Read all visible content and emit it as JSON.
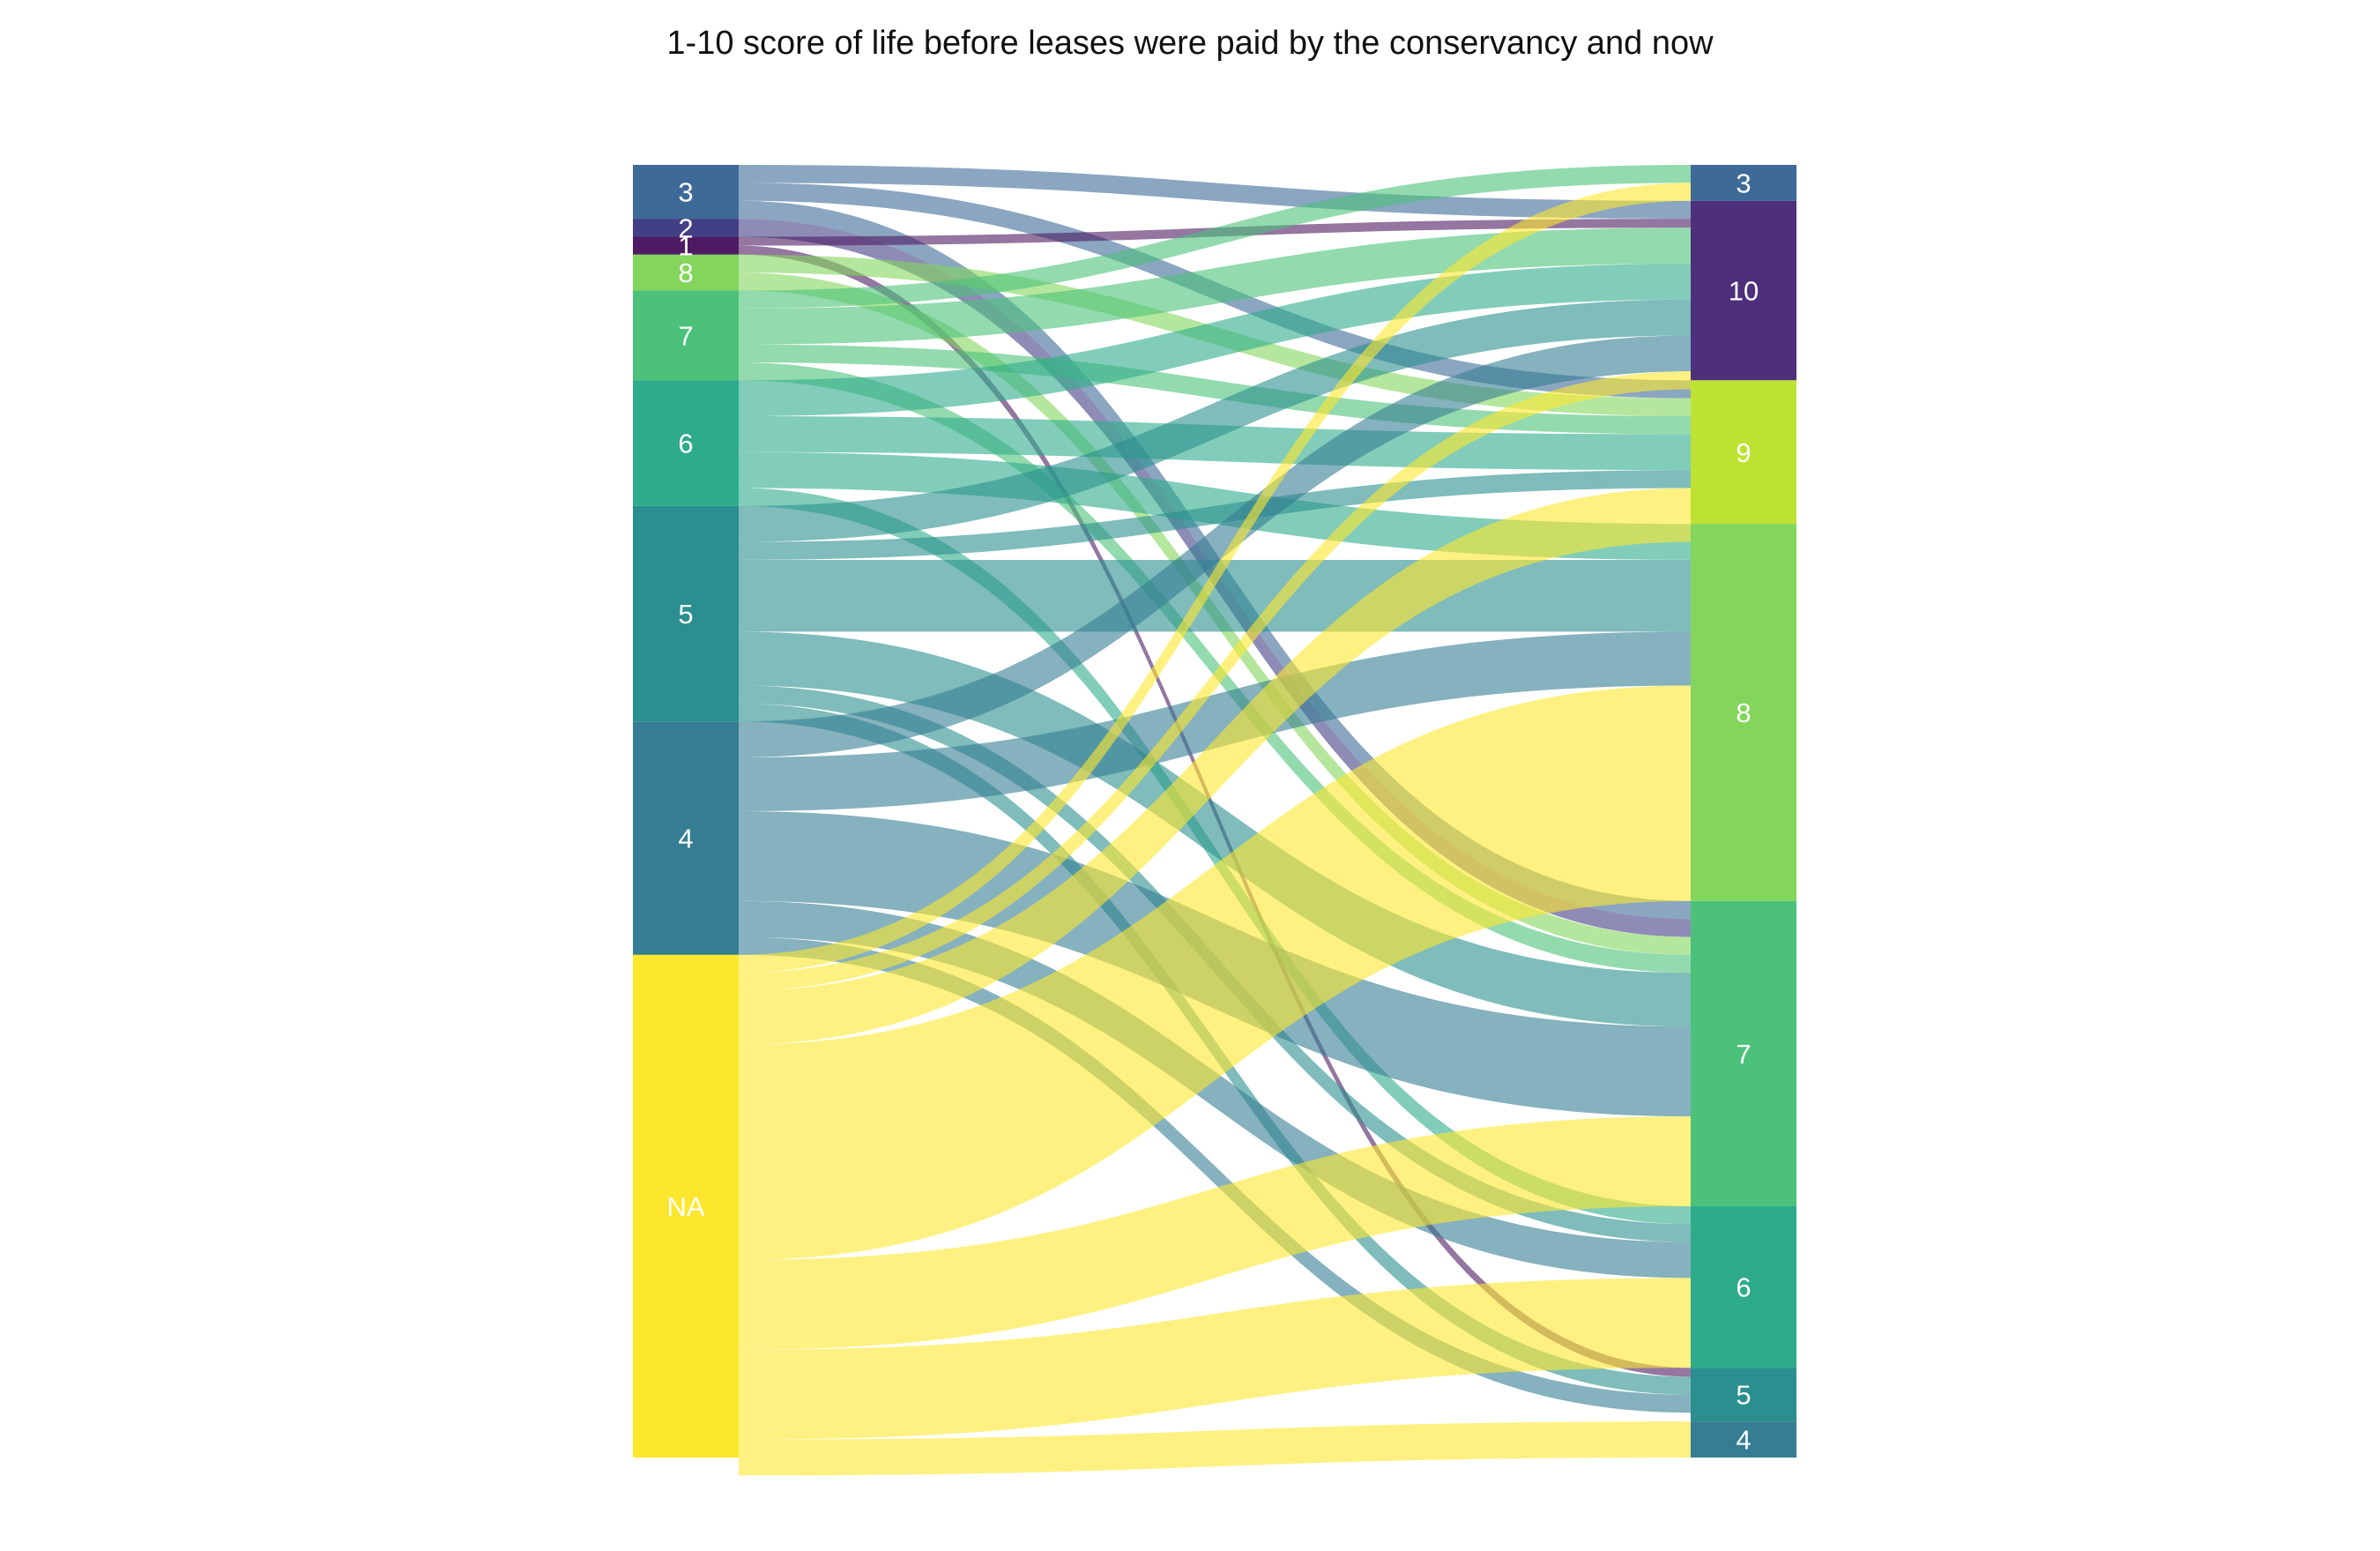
{
  "title": "1-10 score of life before leases were paid by the conservancy and now",
  "chart_data": {
    "type": "sankey",
    "title": "1-10 score of life before leases were paid by the conservancy and now",
    "left_nodes": [
      {
        "label": "3",
        "value": 3,
        "color": "#3e6a97"
      },
      {
        "label": "2",
        "value": 1,
        "color": "#433f85"
      },
      {
        "label": "1",
        "value": 1,
        "color": "#4d1a63"
      },
      {
        "label": "8",
        "value": 2,
        "color": "#83d55c"
      },
      {
        "label": "7",
        "value": 5,
        "color": "#4bc17a"
      },
      {
        "label": "6",
        "value": 7,
        "color": "#2eab8b"
      },
      {
        "label": "5",
        "value": 12,
        "color": "#2a8f8e"
      },
      {
        "label": "4",
        "value": 13,
        "color": "#357d93"
      },
      {
        "label": "NA",
        "value": 28,
        "color": "#fde72d"
      }
    ],
    "right_nodes": [
      {
        "label": "3",
        "value": 2,
        "color": "#3e6a97"
      },
      {
        "label": "10",
        "value": 10,
        "color": "#4e2f7c"
      },
      {
        "label": "9",
        "value": 8,
        "color": "#bde231"
      },
      {
        "label": "8",
        "value": 21,
        "color": "#83d55c"
      },
      {
        "label": "7",
        "value": 17,
        "color": "#4bc17a"
      },
      {
        "label": "6",
        "value": 9,
        "color": "#2eab8b"
      },
      {
        "label": "5",
        "value": 3,
        "color": "#2a8f8e"
      },
      {
        "label": "4",
        "value": 2,
        "color": "#357d93"
      }
    ],
    "links": [
      {
        "source": "3",
        "target": "10",
        "value": 1
      },
      {
        "source": "3",
        "target": "9",
        "value": 1
      },
      {
        "source": "3",
        "target": "7",
        "value": 1
      },
      {
        "source": "2",
        "target": "7",
        "value": 1
      },
      {
        "source": "1",
        "target": "10",
        "value": 0.5
      },
      {
        "source": "1",
        "target": "5",
        "value": 0.5
      },
      {
        "source": "8",
        "target": "9",
        "value": 1
      },
      {
        "source": "8",
        "target": "7",
        "value": 1
      },
      {
        "source": "7",
        "target": "3",
        "value": 1
      },
      {
        "source": "7",
        "target": "10",
        "value": 2
      },
      {
        "source": "7",
        "target": "9",
        "value": 1
      },
      {
        "source": "7",
        "target": "7",
        "value": 1
      },
      {
        "source": "6",
        "target": "10",
        "value": 2
      },
      {
        "source": "6",
        "target": "9",
        "value": 2
      },
      {
        "source": "6",
        "target": "8",
        "value": 2
      },
      {
        "source": "6",
        "target": "6",
        "value": 1
      },
      {
        "source": "5",
        "target": "10",
        "value": 2
      },
      {
        "source": "5",
        "target": "9",
        "value": 1
      },
      {
        "source": "5",
        "target": "8",
        "value": 4
      },
      {
        "source": "5",
        "target": "7",
        "value": 3
      },
      {
        "source": "5",
        "target": "6",
        "value": 1
      },
      {
        "source": "5",
        "target": "5",
        "value": 1
      },
      {
        "source": "4",
        "target": "10",
        "value": 2
      },
      {
        "source": "4",
        "target": "8",
        "value": 3
      },
      {
        "source": "4",
        "target": "7",
        "value": 5
      },
      {
        "source": "4",
        "target": "6",
        "value": 2
      },
      {
        "source": "4",
        "target": "5",
        "value": 1
      },
      {
        "source": "NA",
        "target": "3",
        "value": 1
      },
      {
        "source": "NA",
        "target": "10",
        "value": 1
      },
      {
        "source": "NA",
        "target": "9",
        "value": 3
      },
      {
        "source": "NA",
        "target": "8",
        "value": 12
      },
      {
        "source": "NA",
        "target": "7",
        "value": 5
      },
      {
        "source": "NA",
        "target": "6",
        "value": 5
      },
      {
        "source": "NA",
        "target": "4",
        "value": 2
      }
    ]
  }
}
